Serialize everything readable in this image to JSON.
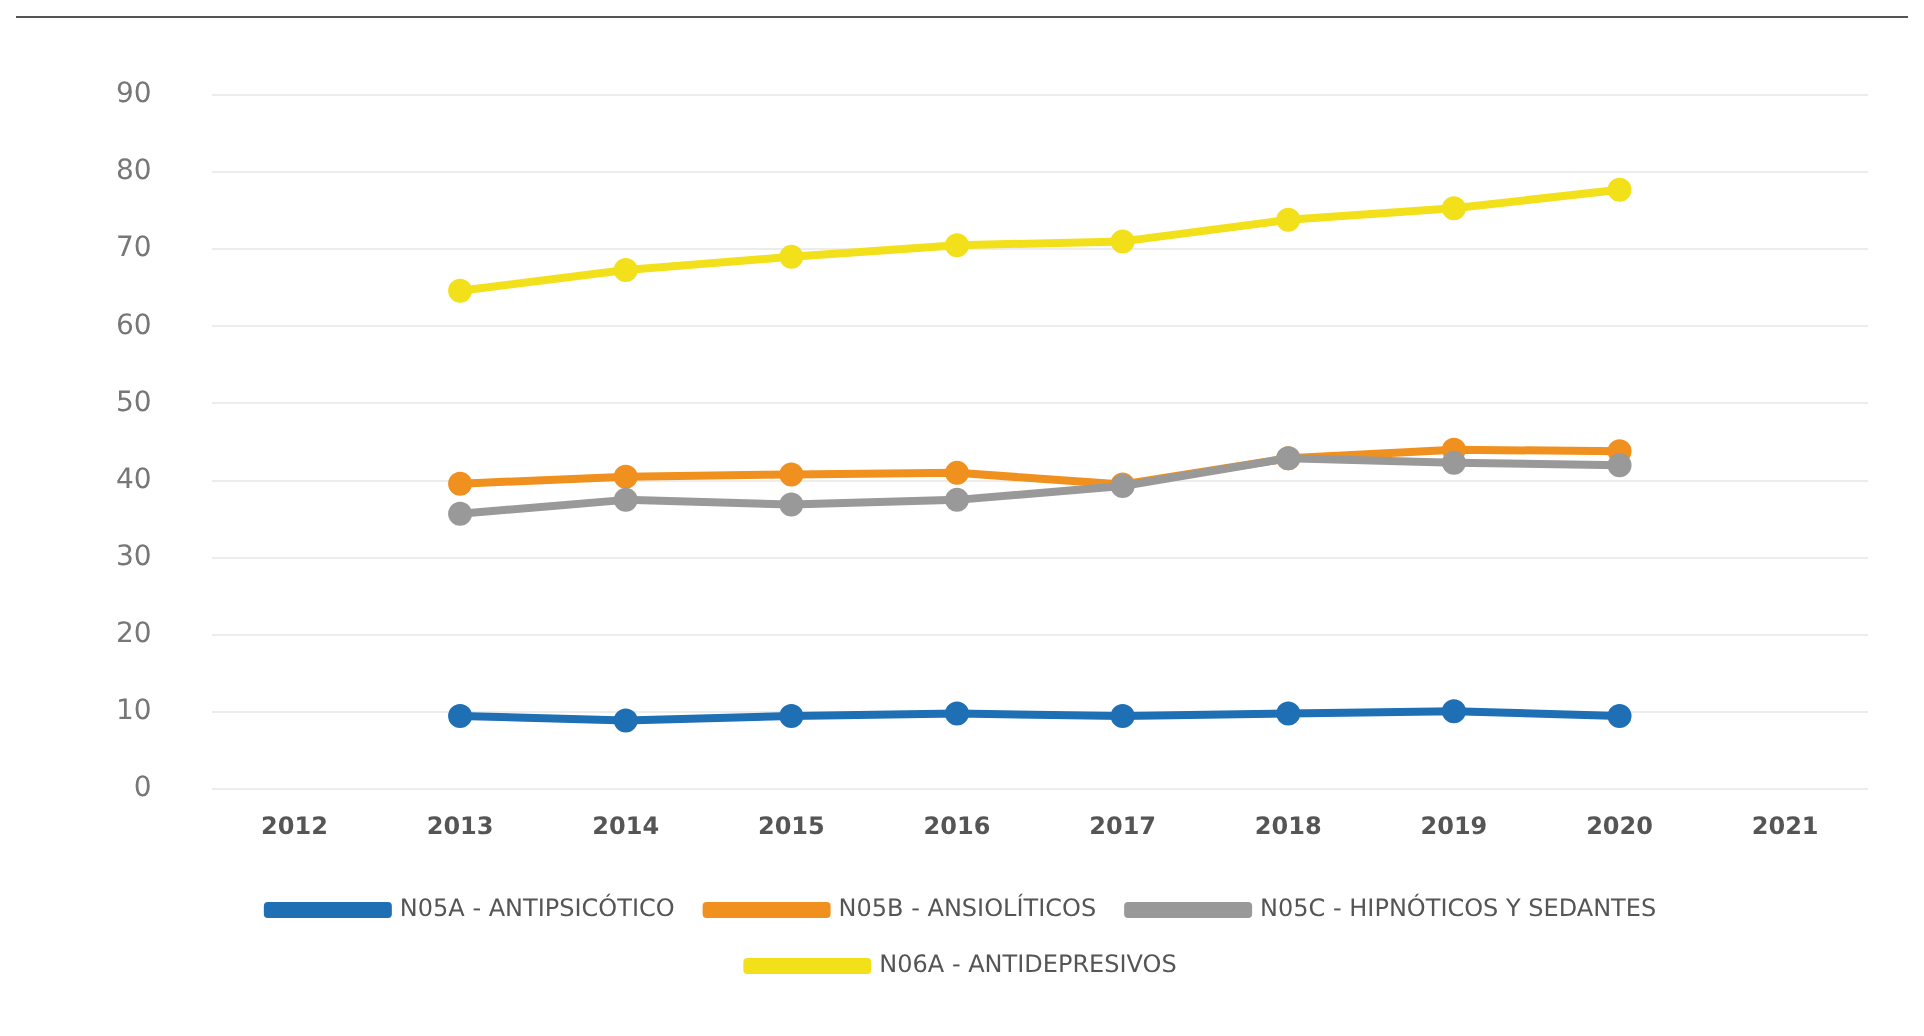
{
  "chart_data": {
    "type": "line",
    "categories": [
      "2012",
      "2013",
      "2014",
      "2015",
      "2016",
      "2017",
      "2018",
      "2019",
      "2020",
      "2021"
    ],
    "series": [
      {
        "name": "N05A - ANTIPSICÓTICO",
        "color": "#1f6fb5",
        "values": [
          null,
          9.5,
          8.9,
          9.5,
          9.8,
          9.5,
          9.8,
          10.1,
          9.5,
          null
        ]
      },
      {
        "name": "N05B - ANSIOLÍTICOS",
        "color": "#f0901e",
        "values": [
          null,
          39.6,
          40.5,
          40.8,
          41,
          39.5,
          42.9,
          44,
          43.8,
          null
        ]
      },
      {
        "name": "N05C - HIPNÓTICOS Y SEDANTES",
        "color": "#999999",
        "values": [
          null,
          35.7,
          37.5,
          36.9,
          37.5,
          39.3,
          42.9,
          42.3,
          42,
          null
        ]
      },
      {
        "name": "N06A - ANTIDEPRESIVOS",
        "color": "#f2e01a",
        "values": [
          null,
          64.6,
          67.3,
          69,
          70.5,
          71,
          73.8,
          75.3,
          77.7,
          null
        ]
      }
    ],
    "ylim": [
      0,
      90
    ],
    "yticks": [
      0,
      10,
      20,
      30,
      40,
      50,
      60,
      70,
      80,
      90
    ],
    "grid": "y",
    "legend": "bottom",
    "marker": "circle",
    "line_style": "solid"
  }
}
